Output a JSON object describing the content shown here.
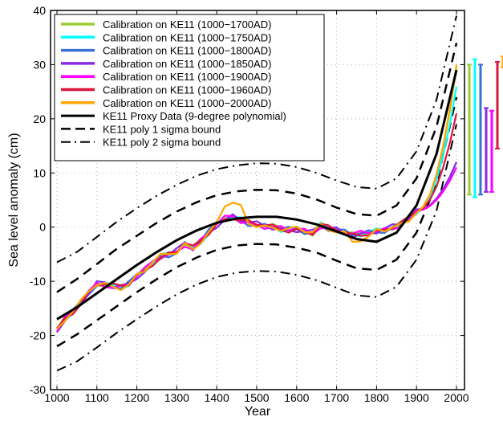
{
  "chart_data": {
    "type": "line",
    "title": "",
    "xlabel": "Year",
    "ylabel": "Sea level anomaly (cm)",
    "xlim": [
      990,
      2010
    ],
    "ylim": [
      -30,
      40
    ],
    "xticks": [
      1000,
      1100,
      1200,
      1300,
      1400,
      1500,
      1600,
      1700,
      1800,
      1900,
      2000
    ],
    "yticks": [
      -30,
      -20,
      -10,
      0,
      10,
      20,
      30,
      40
    ],
    "grid": true,
    "legend_position": "top-left",
    "proxy_polynomial": {
      "name": "KE11 Proxy Data (9-degree polynomial)",
      "color": "#000000",
      "style": "solid",
      "x": [
        1000,
        1050,
        1100,
        1150,
        1200,
        1250,
        1300,
        1350,
        1400,
        1450,
        1500,
        1550,
        1600,
        1650,
        1700,
        1750,
        1800,
        1850,
        1900,
        1950,
        2000
      ],
      "y": [
        -17,
        -14.8,
        -12.2,
        -9.6,
        -7.0,
        -4.6,
        -2.4,
        -0.6,
        0.8,
        1.6,
        1.9,
        1.9,
        1.4,
        0.5,
        -0.8,
        -2.2,
        -2.7,
        -1.0,
        4.0,
        13.5,
        29.0
      ]
    },
    "sigma1_bound": {
      "name": "KE11 poly 1 sigma bound",
      "color": "#000000",
      "style": "dashed",
      "offset": 5,
      "x": [
        1000,
        1050,
        1100,
        1150,
        1200,
        1250,
        1300,
        1350,
        1400,
        1450,
        1500,
        1550,
        1600,
        1650,
        1700,
        1750,
        1800,
        1850,
        1900,
        1950,
        2000
      ],
      "upper": [
        -12.0,
        -9.6,
        -6.8,
        -4.0,
        -1.6,
        0.8,
        2.9,
        4.6,
        5.9,
        6.6,
        6.9,
        6.8,
        6.2,
        5.1,
        3.6,
        2.4,
        2.1,
        4.0,
        9.0,
        18.5,
        34.0
      ],
      "lower": [
        -22.0,
        -19.8,
        -17.2,
        -14.6,
        -12.0,
        -9.6,
        -7.4,
        -5.6,
        -4.2,
        -3.4,
        -3.1,
        -3.2,
        -3.8,
        -4.7,
        -6.2,
        -7.6,
        -7.9,
        -6.0,
        -1.0,
        8.0,
        24.0
      ]
    },
    "sigma2_bound": {
      "name": "KE11 poly 2 sigma bound",
      "color": "#000000",
      "style": "dash-dot",
      "offset": 10,
      "x": [
        1000,
        1050,
        1100,
        1150,
        1200,
        1250,
        1300,
        1350,
        1400,
        1450,
        1500,
        1550,
        1600,
        1650,
        1700,
        1750,
        1800,
        1850,
        1900,
        1950,
        2000
      ],
      "upper": [
        -6.5,
        -4.6,
        -1.8,
        1.0,
        3.5,
        5.8,
        7.8,
        9.5,
        10.7,
        11.4,
        11.8,
        11.7,
        11.1,
        10.0,
        8.6,
        7.4,
        7.1,
        9.0,
        14.0,
        23.5,
        39.0
      ],
      "lower": [
        -26.5,
        -24.8,
        -22.2,
        -19.5,
        -17.0,
        -14.6,
        -12.4,
        -10.6,
        -9.2,
        -8.4,
        -8.1,
        -8.2,
        -8.8,
        -9.8,
        -11.2,
        -12.6,
        -12.9,
        -11.0,
        -6.0,
        3.0,
        19.0
      ]
    },
    "calibration_series": [
      {
        "name": "Calibration on KE11 (1000−1700AD)",
        "color": "#9acd32",
        "x_end": 1700,
        "range": [
          6,
          30
        ],
        "tail_end": 29.5
      },
      {
        "name": "Calibration on KE11 (1000−1750AD)",
        "color": "#00ffff",
        "x_end": 1750,
        "range": [
          5.5,
          31
        ],
        "tail_end": 26
      },
      {
        "name": "Calibration on KE11 (1000−1800AD)",
        "color": "#3a6fd8",
        "x_end": 1800,
        "range": [
          6,
          30
        ],
        "tail_end": 12
      },
      {
        "name": "Calibration on KE11 (1000−1850AD)",
        "color": "#8a2be2",
        "x_end": 1850,
        "range": [
          6.5,
          22
        ],
        "tail_end": 12
      },
      {
        "name": "Calibration on KE11 (1000−1900AD)",
        "color": "#ff00ff",
        "x_end": 1900,
        "range": [
          6.5,
          21.5
        ],
        "tail_end": 11
      },
      {
        "name": "Calibration on KE11 (1000−1960AD)",
        "color": "#dc143c",
        "x_end": 1960,
        "range": [
          14.5,
          30.5
        ],
        "tail_end": 21
      },
      {
        "name": "Calibration on KE11 (1000−2000AD)",
        "color": "#ffa500",
        "x_end": 2000,
        "range": [
          29.5,
          31.5
        ],
        "tail_end": 30
      }
    ],
    "reconstruction_base": {
      "x": [
        1000,
        1020,
        1040,
        1060,
        1080,
        1100,
        1120,
        1140,
        1160,
        1180,
        1200,
        1220,
        1240,
        1260,
        1280,
        1300,
        1320,
        1340,
        1360,
        1380,
        1400,
        1420,
        1440,
        1460,
        1480,
        1500,
        1520,
        1540,
        1560,
        1580,
        1600,
        1620,
        1640,
        1660,
        1680,
        1700,
        1720,
        1740,
        1760,
        1780,
        1800,
        1820,
        1840,
        1860,
        1880,
        1900
      ],
      "y": [
        -19,
        -17,
        -15.5,
        -14,
        -12,
        -10.5,
        -10.5,
        -11,
        -11,
        -10.5,
        -9,
        -8,
        -6.5,
        -5.5,
        -5,
        -4.5,
        -3,
        -4,
        -2.5,
        -1,
        0.5,
        1.5,
        2,
        1.2,
        0.8,
        0.5,
        0.2,
        0,
        -0.3,
        -0.5,
        -0.4,
        -0.8,
        -1,
        0.3,
        -0.2,
        -0.5,
        -1,
        -1.5,
        -1.2,
        -1,
        -0.8,
        -0.5,
        0,
        0.5,
        1.5,
        3
      ]
    }
  }
}
